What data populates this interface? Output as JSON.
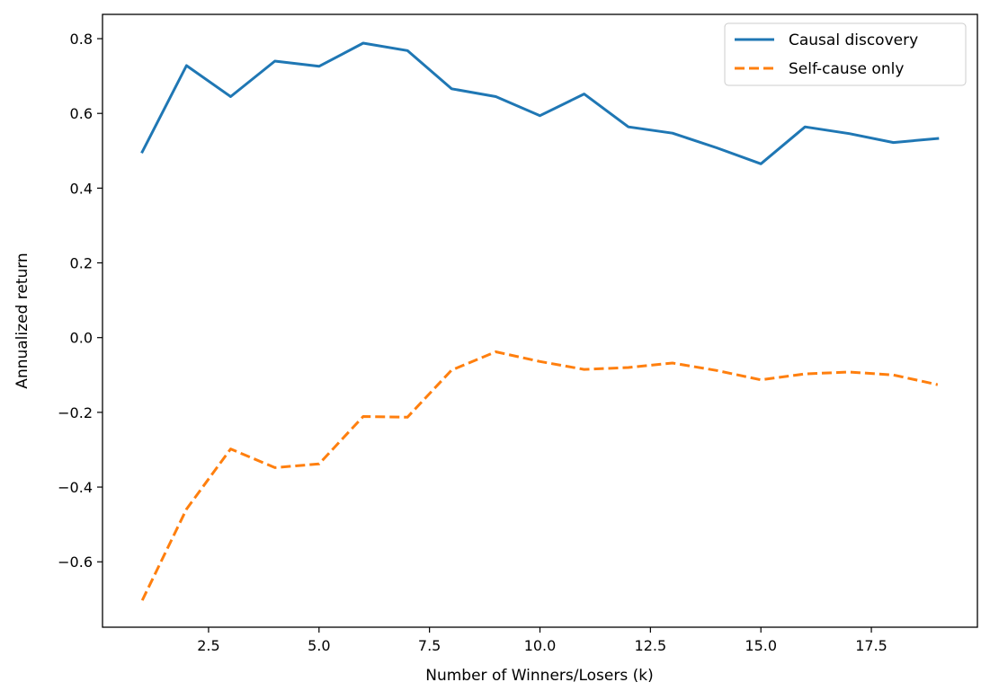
{
  "chart_data": {
    "type": "line",
    "title": "",
    "xlabel": "Number of Winners/Losers (k)",
    "ylabel": "Annualized return",
    "xlim": [
      0.1,
      19.9
    ],
    "ylim": [
      -0.775,
      0.865
    ],
    "xticks": [
      2.5,
      5.0,
      7.5,
      10.0,
      12.5,
      15.0,
      17.5
    ],
    "xtick_labels": [
      "2.5",
      "5.0",
      "7.5",
      "10.0",
      "12.5",
      "15.0",
      "17.5"
    ],
    "yticks": [
      -0.6,
      -0.4,
      -0.2,
      0.0,
      0.2,
      0.4,
      0.6,
      0.8
    ],
    "ytick_labels": [
      "−0.6",
      "−0.4",
      "−0.2",
      "0.0",
      "0.2",
      "0.4",
      "0.6",
      "0.8"
    ],
    "grid": false,
    "legend_position": "upper right",
    "x": [
      1,
      2,
      3,
      4,
      5,
      6,
      7,
      8,
      9,
      10,
      11,
      12,
      13,
      14,
      15,
      16,
      17,
      18,
      19
    ],
    "series": [
      {
        "name": "Causal discovery",
        "color": "#1f77b4",
        "style": "solid",
        "values": [
          0.497,
          0.728,
          0.645,
          0.74,
          0.726,
          0.788,
          0.768,
          0.666,
          0.645,
          0.594,
          0.652,
          0.564,
          0.547,
          0.508,
          0.465,
          0.564,
          0.546,
          0.522,
          0.533
        ]
      },
      {
        "name": "Self-cause only",
        "color": "#ff7f0e",
        "style": "dashed",
        "values": [
          -0.703,
          -0.459,
          -0.298,
          -0.348,
          -0.338,
          -0.211,
          -0.213,
          -0.087,
          -0.038,
          -0.064,
          -0.085,
          -0.08,
          -0.068,
          -0.088,
          -0.113,
          -0.097,
          -0.092,
          -0.1,
          -0.126
        ]
      }
    ]
  }
}
